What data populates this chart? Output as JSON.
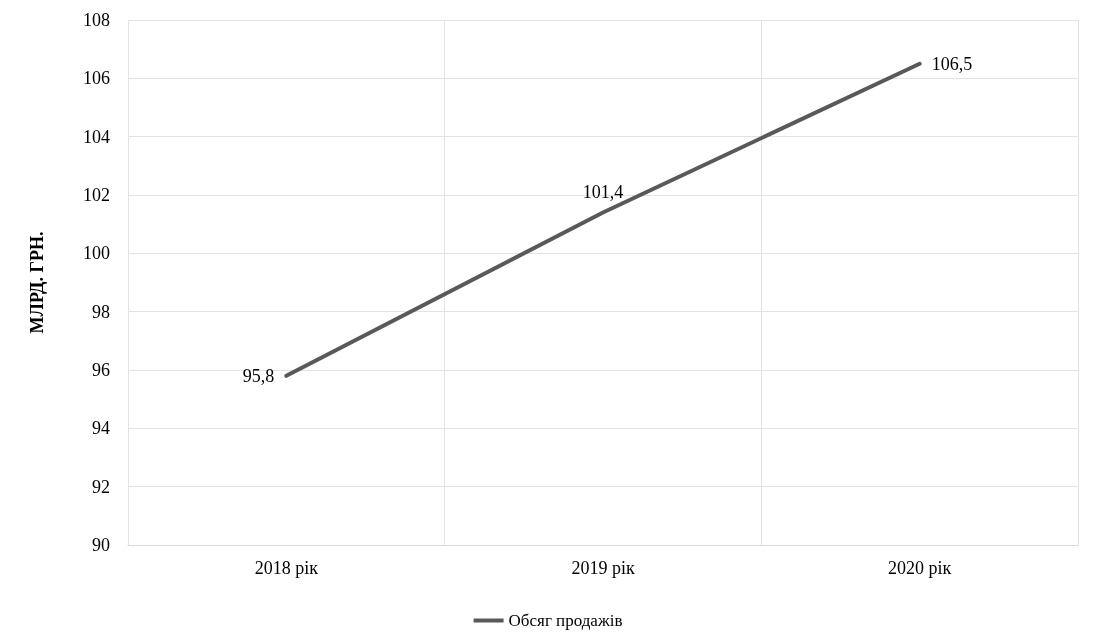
{
  "chart_data": {
    "type": "line",
    "ylabel": "МЛРД. ГРН.",
    "categories": [
      "2018 рік",
      "2019 рік",
      "2020 рік"
    ],
    "series": [
      {
        "name": "Обсяг продажів",
        "color": "#595959",
        "values": [
          95.8,
          101.4,
          106.5
        ],
        "value_labels": [
          "95,8",
          "101,4",
          "106,5"
        ]
      }
    ],
    "ylim": [
      90,
      108
    ],
    "yticks": [
      90,
      92,
      94,
      96,
      98,
      100,
      102,
      104,
      106,
      108
    ],
    "grid": true,
    "legend": "bottom",
    "marker": "none",
    "line_style": "solid"
  }
}
